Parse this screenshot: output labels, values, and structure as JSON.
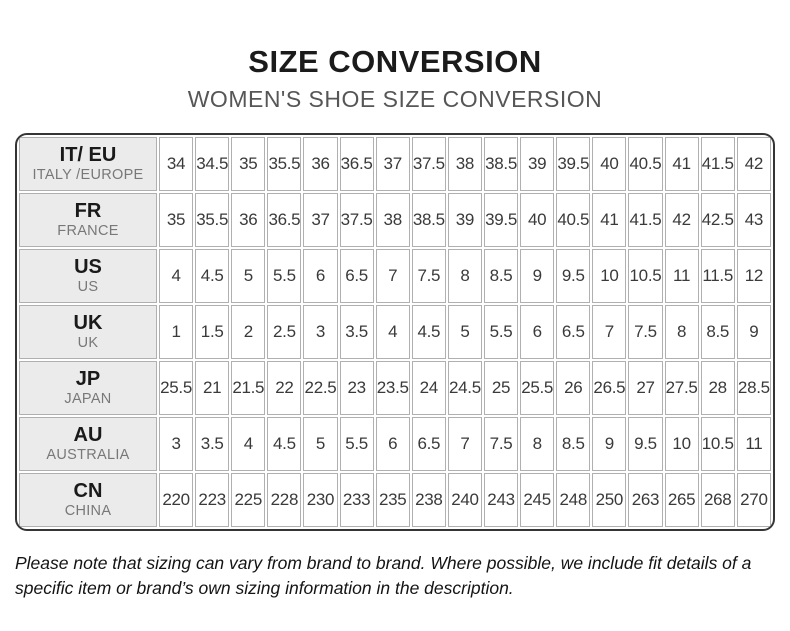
{
  "header": {
    "title": "SIZE CONVERSION",
    "subtitle": "WOMEN'S SHOE SIZE CONVERSION"
  },
  "chart_data": {
    "type": "table",
    "title": "WOMEN'S SHOE SIZE CONVERSION",
    "rows": [
      {
        "code": "IT/ EU",
        "region": "ITALY /EUROPE",
        "values": [
          "34",
          "34.5",
          "35",
          "35.5",
          "36",
          "36.5",
          "37",
          "37.5",
          "38",
          "38.5",
          "39",
          "39.5",
          "40",
          "40.5",
          "41",
          "41.5",
          "42"
        ]
      },
      {
        "code": "FR",
        "region": "FRANCE",
        "values": [
          "35",
          "35.5",
          "36",
          "36.5",
          "37",
          "37.5",
          "38",
          "38.5",
          "39",
          "39.5",
          "40",
          "40.5",
          "41",
          "41.5",
          "42",
          "42.5",
          "43"
        ]
      },
      {
        "code": "US",
        "region": "US",
        "values": [
          "4",
          "4.5",
          "5",
          "5.5",
          "6",
          "6.5",
          "7",
          "7.5",
          "8",
          "8.5",
          "9",
          "9.5",
          "10",
          "10.5",
          "11",
          "11.5",
          "12"
        ]
      },
      {
        "code": "UK",
        "region": "UK",
        "values": [
          "1",
          "1.5",
          "2",
          "2.5",
          "3",
          "3.5",
          "4",
          "4.5",
          "5",
          "5.5",
          "6",
          "6.5",
          "7",
          "7.5",
          "8",
          "8.5",
          "9"
        ]
      },
      {
        "code": "JP",
        "region": "JAPAN",
        "values": [
          "25.5",
          "21",
          "21.5",
          "22",
          "22.5",
          "23",
          "23.5",
          "24",
          "24.5",
          "25",
          "25.5",
          "26",
          "26.5",
          "27",
          "27.5",
          "28",
          "28.5"
        ]
      },
      {
        "code": "AU",
        "region": "AUSTRALIA",
        "values": [
          "3",
          "3.5",
          "4",
          "4.5",
          "5",
          "5.5",
          "6",
          "6.5",
          "7",
          "7.5",
          "8",
          "8.5",
          "9",
          "9.5",
          "10",
          "10.5",
          "11"
        ]
      },
      {
        "code": "CN",
        "region": "CHINA",
        "values": [
          "220",
          "223",
          "225",
          "228",
          "230",
          "233",
          "235",
          "238",
          "240",
          "243",
          "245",
          "248",
          "250",
          "263",
          "265",
          "268",
          "270"
        ]
      }
    ]
  },
  "footer": {
    "note": "Please note that sizing can vary from brand to brand. Where possible, we include fit details of a specific item or brand’s own sizing information in the description."
  },
  "colors": {
    "outer_border": "#353535",
    "cell_border": "#b0b0b0",
    "header_cell_bg": "#ebebeb",
    "title_text": "#1b1b1b",
    "subtitle_text": "#565656",
    "region_text": "#787878"
  }
}
